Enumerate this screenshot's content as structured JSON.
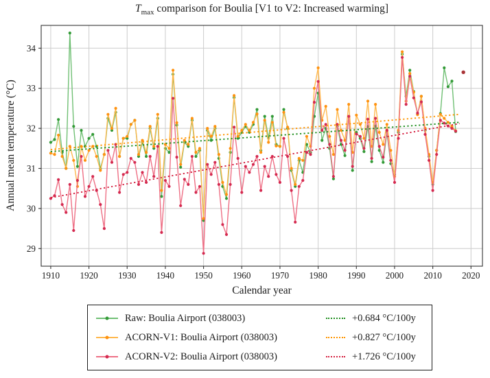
{
  "title": {
    "var": "T",
    "var_sub": "max",
    "rest": " comparison for Boulia  [V1 to V2: Increased warming]"
  },
  "x_axis": {
    "label": "Calendar year",
    "ticks": [
      1910,
      1920,
      1930,
      1940,
      1950,
      1960,
      1970,
      1980,
      1990,
      2000,
      2010,
      2020
    ]
  },
  "y_axis": {
    "label": "Annual mean temperature (°C)",
    "ticks": [
      29,
      30,
      31,
      32,
      33,
      34
    ]
  },
  "colors": {
    "grid": "#cccccc",
    "axis": "#333333",
    "text": "#1a1a1a",
    "raw_line": "#6fbf73",
    "raw_marker": "#339a37",
    "raw_trend": "#1e8e1e",
    "v1_line": "#ffb84d",
    "v1_marker": "#ff9210",
    "v1_trend": "#ff9500",
    "v2_line": "#ee6e84",
    "v2_marker": "#d42a50",
    "v2_trend": "#d41f3f",
    "isolated_point": "#a93438"
  },
  "chart_data": {
    "type": "line",
    "title": "Tmax comparison for Boulia [V1 to V2: Increased warming]",
    "xlabel": "Calendar year",
    "ylabel": "Annual mean temperature (°C)",
    "x_range": [
      1907.5,
      2023.0
    ],
    "y_range": [
      28.56,
      34.57
    ],
    "grid": true,
    "legend_position": "below",
    "years": {
      "start": 1910,
      "end": 2016
    },
    "series": [
      {
        "name": "Raw: Boulia Airport (038003)",
        "line_color": "#6fbf73",
        "marker_color": "#339a37",
        "values": [
          31.65,
          31.72,
          32.22,
          31.4,
          31.0,
          34.38,
          32.05,
          31.05,
          31.95,
          31.55,
          31.75,
          31.85,
          31.55,
          31.0,
          31.35,
          32.25,
          31.95,
          32.4,
          31.3,
          31.75,
          31.75,
          32.1,
          32.2,
          31.3,
          31.65,
          31.3,
          32.0,
          31.5,
          32.25,
          30.3,
          31.5,
          31.4,
          33.35,
          32.08,
          31.03,
          31.65,
          31.55,
          32.2,
          31.3,
          31.45,
          29.7,
          31.95,
          31.7,
          32.0,
          31.25,
          30.55,
          30.25,
          31.4,
          32.77,
          31.75,
          31.9,
          32.05,
          31.9,
          32.1,
          32.47,
          31.45,
          32.3,
          31.76,
          32.3,
          31.6,
          31.55,
          32.47,
          32.0,
          30.95,
          30.55,
          31.2,
          30.9,
          31.6,
          31.4,
          32.3,
          32.88,
          31.7,
          32.0,
          31.5,
          30.74,
          32.05,
          31.6,
          31.32,
          32.3,
          30.95,
          31.9,
          31.75,
          31.42,
          32.05,
          31.17,
          32.06,
          31.45,
          31.15,
          31.9,
          31.12,
          30.85,
          31.9,
          33.85,
          32.8,
          33.45,
          32.92,
          32.35,
          32.8,
          31.95,
          31.3,
          30.6,
          31.45,
          32.37,
          33.51,
          33.04,
          33.18,
          31.92
        ]
      },
      {
        "name": "ACORN-V1: Boulia Airport (038003)",
        "line_color": "#ffb84d",
        "marker_color": "#ff9210",
        "values": [
          31.38,
          31.35,
          31.83,
          31.3,
          31.0,
          31.55,
          31.2,
          30.55,
          31.55,
          31.2,
          31.45,
          31.55,
          31.3,
          30.95,
          31.35,
          32.35,
          32.0,
          32.5,
          31.3,
          31.75,
          31.8,
          32.1,
          32.2,
          31.35,
          31.7,
          31.4,
          32.05,
          31.55,
          32.35,
          30.45,
          31.6,
          31.5,
          33.45,
          32.14,
          31.1,
          31.7,
          31.6,
          32.25,
          31.4,
          31.5,
          29.75,
          32.0,
          31.8,
          32.05,
          31.35,
          30.65,
          30.35,
          31.5,
          32.82,
          31.8,
          31.95,
          32.1,
          31.95,
          32.15,
          32.36,
          31.4,
          32.2,
          31.65,
          32.15,
          31.56,
          31.55,
          32.4,
          32.03,
          31.0,
          30.6,
          31.25,
          31.2,
          31.8,
          31.55,
          33.0,
          33.51,
          32.2,
          32.55,
          31.8,
          31.35,
          32.47,
          31.95,
          31.7,
          32.6,
          31.4,
          32.33,
          32.1,
          31.75,
          32.68,
          31.55,
          32.6,
          31.9,
          31.6,
          32.1,
          31.45,
          30.8,
          31.95,
          33.91,
          32.68,
          33.37,
          32.9,
          32.34,
          32.8,
          32.0,
          31.35,
          30.65,
          31.45,
          32.35,
          32.25,
          32.15,
          32.05,
          31.94
        ]
      },
      {
        "name": "ACORN-V2: Boulia Airport (038003)",
        "line_color": "#ee6e84",
        "marker_color": "#d42a50",
        "values": [
          30.25,
          30.32,
          30.72,
          30.1,
          29.9,
          30.6,
          29.45,
          30.7,
          31.3,
          30.3,
          30.55,
          30.8,
          30.45,
          30.1,
          29.5,
          31.45,
          31.15,
          31.6,
          30.4,
          30.85,
          30.9,
          31.25,
          31.15,
          30.6,
          30.9,
          30.65,
          31.3,
          30.8,
          31.55,
          29.4,
          30.7,
          30.55,
          32.75,
          31.28,
          30.07,
          30.73,
          30.6,
          31.3,
          30.4,
          30.55,
          28.88,
          31.1,
          30.85,
          31.15,
          30.6,
          29.6,
          29.35,
          30.6,
          32.03,
          31.25,
          30.4,
          31.05,
          30.9,
          31.1,
          31.3,
          30.45,
          31.05,
          30.8,
          31.3,
          30.85,
          30.65,
          31.75,
          31.3,
          30.45,
          29.66,
          30.55,
          30.7,
          31.4,
          31.35,
          32.65,
          33.17,
          31.95,
          32.1,
          31.6,
          30.8,
          32.1,
          31.7,
          31.45,
          32.3,
          31.05,
          31.86,
          31.8,
          31.5,
          32.23,
          31.25,
          32.25,
          31.55,
          31.28,
          31.95,
          31.2,
          30.65,
          31.75,
          33.77,
          32.6,
          33.3,
          32.76,
          32.38,
          32.66,
          31.85,
          31.2,
          30.45,
          31.35,
          32.2,
          32.13,
          32.06,
          32.0,
          31.93
        ],
        "extra_points": [
          {
            "year": 2018,
            "value": 33.4,
            "color": "#a93438"
          }
        ]
      }
    ],
    "trend_lines": [
      {
        "label": "+0.684 °C/100y",
        "color": "#1e8e1e",
        "x": [
          1910,
          2017
        ],
        "y": [
          31.42,
          32.15
        ]
      },
      {
        "label": "+0.827 °C/100y",
        "color": "#ff9500",
        "x": [
          1910,
          2017
        ],
        "y": [
          31.47,
          32.35
        ]
      },
      {
        "label": "+1.726 °C/100y",
        "color": "#d41f3f",
        "x": [
          1910,
          2017
        ],
        "y": [
          30.27,
          32.12
        ]
      }
    ]
  }
}
